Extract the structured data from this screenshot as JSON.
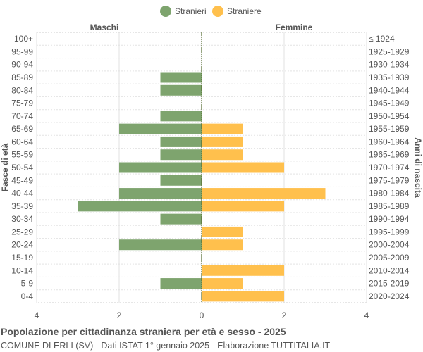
{
  "chart_data": {
    "type": "bar",
    "orientation": "horizontal-population-pyramid",
    "title": "Popolazione per cittadinanza straniera per età e sesso - 2025",
    "subtitle": "COMUNE DI ERLI (SV) - Dati ISTAT 1° gennaio 2025 - Elaborazione TUTTITALIA.IT",
    "ylabel_left": "Fasce di età",
    "ylabel_right": "Anni di nascita",
    "side_left_label": "Maschi",
    "side_right_label": "Femmine",
    "categories": [
      "100+",
      "95-99",
      "90-94",
      "85-89",
      "80-84",
      "75-79",
      "70-74",
      "65-69",
      "60-64",
      "55-59",
      "50-54",
      "45-49",
      "40-44",
      "35-39",
      "30-34",
      "25-29",
      "20-24",
      "15-19",
      "10-14",
      "5-9",
      "0-4"
    ],
    "birth_years": [
      "≤ 1924",
      "1925-1929",
      "1930-1934",
      "1935-1939",
      "1940-1944",
      "1945-1949",
      "1950-1954",
      "1955-1959",
      "1960-1964",
      "1965-1969",
      "1970-1974",
      "1975-1979",
      "1980-1984",
      "1985-1989",
      "1990-1994",
      "1995-1999",
      "2000-2004",
      "2005-2009",
      "2010-2014",
      "2015-2019",
      "2020-2024"
    ],
    "series": [
      {
        "name": "Stranieri",
        "color": "#7ea46e",
        "side": "left",
        "values": [
          0,
          0,
          0,
          1,
          1,
          0,
          1,
          2,
          1,
          1,
          2,
          1,
          2,
          3,
          1,
          0,
          2,
          0,
          0,
          1,
          0
        ]
      },
      {
        "name": "Straniere",
        "color": "#ffc04d",
        "side": "right",
        "values": [
          0,
          0,
          0,
          0,
          0,
          0,
          0,
          1,
          1,
          1,
          2,
          0,
          3,
          2,
          0,
          1,
          1,
          0,
          2,
          1,
          2
        ]
      }
    ],
    "xlim": [
      -4,
      4
    ],
    "xticks": [
      "4",
      "2",
      "0",
      "2",
      "4"
    ],
    "legend": "top-center",
    "grid": true
  }
}
